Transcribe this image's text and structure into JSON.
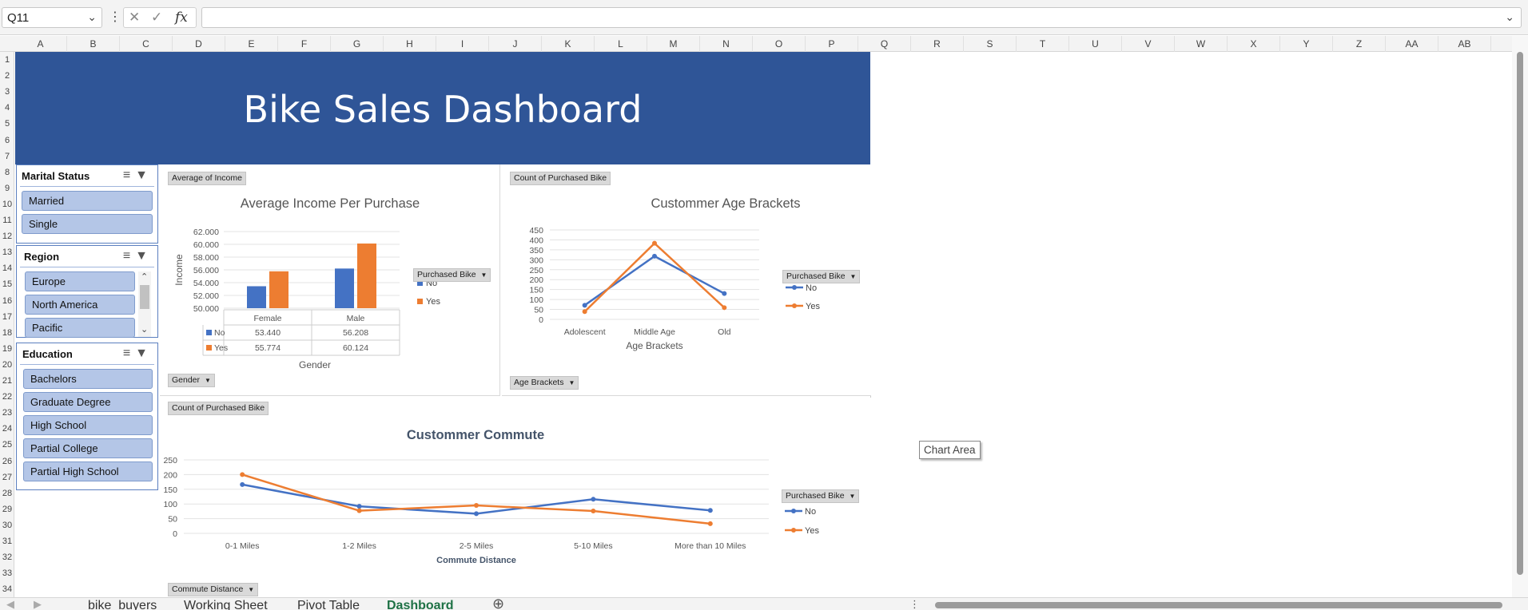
{
  "formula_bar": {
    "name_box": "Q11",
    "formula": ""
  },
  "columns": [
    "A",
    "B",
    "C",
    "D",
    "E",
    "F",
    "G",
    "H",
    "I",
    "J",
    "K",
    "L",
    "M",
    "N",
    "O",
    "P",
    "Q",
    "R",
    "S",
    "T",
    "U",
    "V",
    "W",
    "X",
    "Y",
    "Z",
    "AA",
    "AB"
  ],
  "rows": [
    "1",
    "2",
    "3",
    "4",
    "5",
    "6",
    "7",
    "8",
    "9",
    "10",
    "11",
    "12",
    "13",
    "14",
    "15",
    "16",
    "17",
    "18",
    "19",
    "20",
    "21",
    "22",
    "23",
    "24",
    "25",
    "26",
    "27",
    "28",
    "29",
    "30",
    "31",
    "32",
    "33",
    "34"
  ],
  "dashboard": {
    "title": "Bike Sales Dashboard"
  },
  "slicers": {
    "marital": {
      "title": "Marital Status",
      "items": [
        "Married",
        "Single"
      ]
    },
    "region": {
      "title": "Region",
      "items": [
        "Europe",
        "North America",
        "Pacific"
      ]
    },
    "education": {
      "title": "Education",
      "items": [
        "Bachelors",
        "Graduate Degree",
        "High School",
        "Partial College",
        "Partial High School"
      ]
    }
  },
  "income_chart": {
    "value_button": "Average of Income",
    "axis_button": "Gender",
    "legend_button": "Purchased Bike",
    "chart_data": {
      "type": "bar",
      "title": "Average Income Per Purchase",
      "xlabel": "Gender",
      "ylabel": "Income",
      "categories": [
        "Female",
        "Male"
      ],
      "series": [
        {
          "name": "No",
          "values": [
            53440,
            56208
          ],
          "labels": [
            "53.440",
            "56.208"
          ],
          "color": "#4472c4"
        },
        {
          "name": "Yes",
          "values": [
            55774,
            60124
          ],
          "labels": [
            "55.774",
            "60.124"
          ],
          "color": "#ed7d31"
        }
      ],
      "ylim": [
        50000,
        62000
      ],
      "yticks": [
        "50.000",
        "52.000",
        "54.000",
        "56.000",
        "58.000",
        "60.000",
        "62.000"
      ],
      "legend": "right",
      "data_table": true
    }
  },
  "age_chart": {
    "value_button": "Count of Purchased Bike",
    "axis_button": "Age Brackets",
    "legend_button": "Purchased Bike",
    "chart_data": {
      "type": "line",
      "title": "Custommer Age Brackets",
      "xlabel": "Age Brackets",
      "categories": [
        "Adolescent",
        "Middle Age",
        "Old"
      ],
      "series": [
        {
          "name": "No",
          "values": [
            71,
            318,
            130
          ],
          "color": "#4472c4"
        },
        {
          "name": "Yes",
          "values": [
            39,
            383,
            59
          ],
          "color": "#ed7d31"
        }
      ],
      "ylim": [
        0,
        450
      ],
      "yticks": [
        "0",
        "50",
        "100",
        "150",
        "200",
        "250",
        "300",
        "350",
        "400",
        "450"
      ],
      "legend": "right"
    }
  },
  "commute_chart": {
    "value_button": "Count of Purchased Bike",
    "axis_button": "Commute Distance",
    "legend_button": "Purchased Bike",
    "chart_data": {
      "type": "line",
      "title": "Custommer Commute",
      "xlabel": "Commute Distance",
      "categories": [
        "0-1 Miles",
        "1-2 Miles",
        "2-5 Miles",
        "5-10 Miles",
        "More than 10 Miles"
      ],
      "series": [
        {
          "name": "No",
          "values": [
            166,
            92,
            67,
            116,
            78
          ],
          "color": "#4472c4"
        },
        {
          "name": "Yes",
          "values": [
            200,
            77,
            95,
            76,
            33
          ],
          "color": "#ed7d31"
        }
      ],
      "ylim": [
        0,
        250
      ],
      "yticks": [
        "0",
        "50",
        "100",
        "150",
        "200",
        "250"
      ],
      "legend": "right"
    }
  },
  "tooltip": "Chart Area",
  "sheet_tabs": [
    "bike_buyers",
    "Working Sheet",
    "Pivot Table",
    "Dashboard"
  ],
  "active_tab": "Dashboard"
}
